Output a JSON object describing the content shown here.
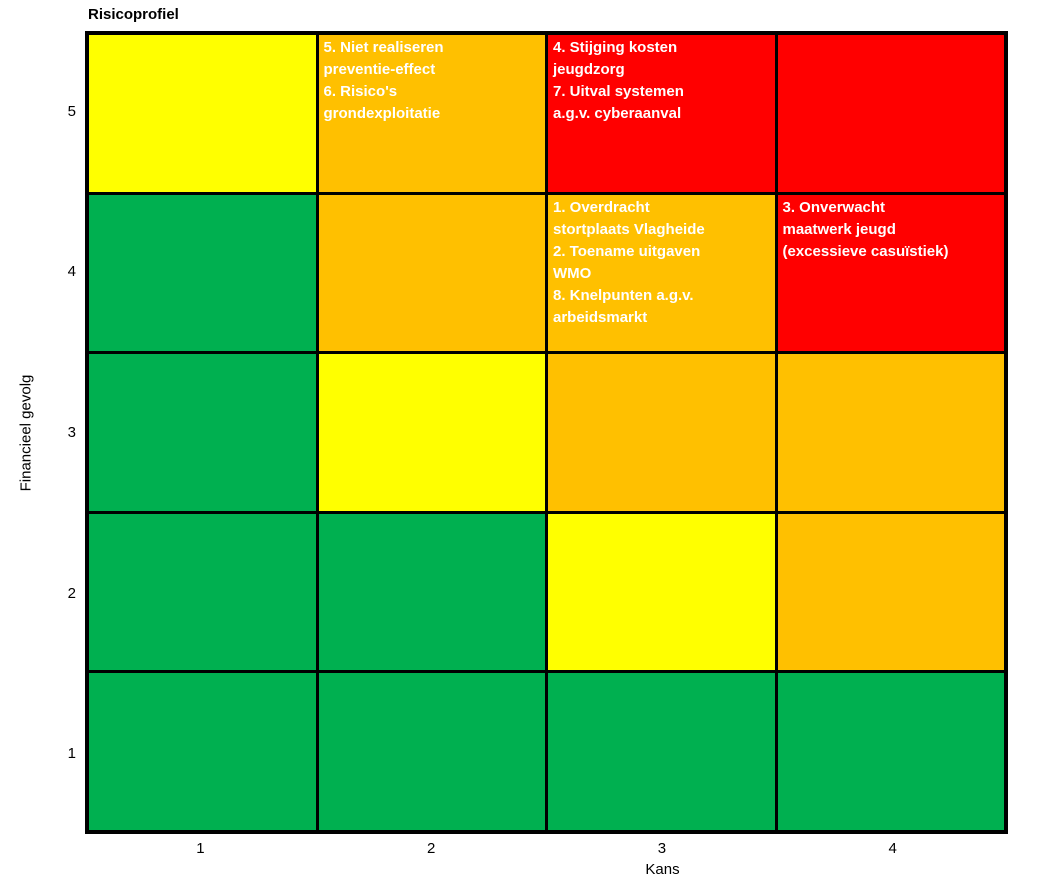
{
  "title": "Risicoprofiel",
  "colors": {
    "green": "#00B050",
    "yellow": "#FFFF00",
    "orange": "#FFC000",
    "red": "#FF0000",
    "grid_line": "#000000",
    "cell_text": "#FFFFFF",
    "axis_text": "#000000"
  },
  "x_axis": {
    "label": "Kans",
    "ticks": [
      "1",
      "2",
      "3",
      "4"
    ]
  },
  "y_axis": {
    "label": "Financieel gevolg",
    "ticks": [
      "5",
      "4",
      "3",
      "2",
      "1"
    ]
  },
  "chart_data": {
    "type": "heatmap",
    "title": "Risicoprofiel",
    "xlabel": "Kans",
    "ylabel": "Financieel gevolg",
    "x_categories": [
      1,
      2,
      3,
      4
    ],
    "y_categories": [
      5,
      4,
      3,
      2,
      1
    ],
    "legend": "none",
    "cell_colors": [
      [
        "yellow",
        "orange",
        "red",
        "red"
      ],
      [
        "green",
        "orange",
        "orange",
        "red"
      ],
      [
        "green",
        "yellow",
        "orange",
        "orange"
      ],
      [
        "green",
        "green",
        "yellow",
        "orange"
      ],
      [
        "green",
        "green",
        "green",
        "green"
      ]
    ],
    "cell_lines": [
      [
        null,
        [
          "5. Niet realiseren",
          "preventie-effect",
          "6. Risico's",
          "grondexploitatie"
        ],
        [
          "4. Stijging kosten",
          "jeugdzorg",
          "7. Uitval systemen",
          "a.g.v. cyberaanval"
        ],
        null
      ],
      [
        null,
        null,
        [
          "1. Overdracht",
          "stortplaats Vlagheide",
          "2. Toename uitgaven",
          "WMO",
          "8. Knelpunten a.g.v.",
          "arbeidsmarkt"
        ],
        [
          "3. Onverwacht",
          "maatwerk jeugd",
          "(excessieve casuïstiek)"
        ]
      ],
      [
        null,
        null,
        null,
        null
      ],
      [
        null,
        null,
        null,
        null
      ],
      [
        null,
        null,
        null,
        null
      ]
    ],
    "risks": [
      {
        "nr": 1,
        "label": "Overdracht stortplaats Vlagheide",
        "kans": 3,
        "financieel_gevolg": 4
      },
      {
        "nr": 2,
        "label": "Toename uitgaven WMO",
        "kans": 3,
        "financieel_gevolg": 4
      },
      {
        "nr": 3,
        "label": "Onverwacht maatwerk jeugd (excessieve casuïstiek)",
        "kans": 4,
        "financieel_gevolg": 4
      },
      {
        "nr": 4,
        "label": "Stijging kosten jeugdzorg",
        "kans": 3,
        "financieel_gevolg": 5
      },
      {
        "nr": 5,
        "label": "Niet realiseren preventie-effect",
        "kans": 2,
        "financieel_gevolg": 5
      },
      {
        "nr": 6,
        "label": "Risico's grondexploitatie",
        "kans": 2,
        "financieel_gevolg": 5
      },
      {
        "nr": 7,
        "label": "Uitval systemen a.g.v. cyberaanval",
        "kans": 3,
        "financieel_gevolg": 5
      },
      {
        "nr": 8,
        "label": "Knelpunten a.g.v. arbeidsmarkt",
        "kans": 3,
        "financieel_gevolg": 4
      }
    ]
  }
}
